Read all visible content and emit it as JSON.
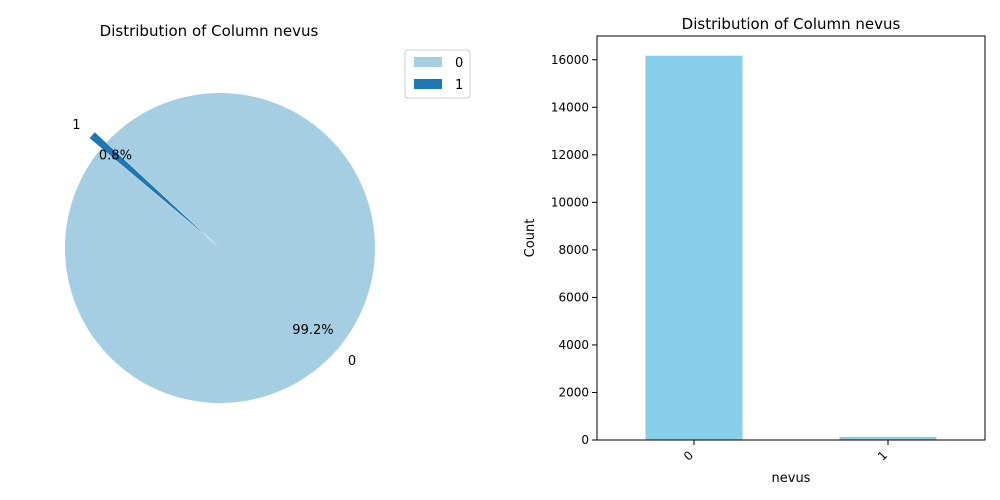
{
  "chart_data": [
    {
      "type": "pie",
      "title": "Distribution of Column nevus",
      "categories": [
        "0",
        "1"
      ],
      "values": [
        99.2,
        0.8
      ],
      "value_labels": [
        "99.2%",
        "0.8%"
      ],
      "colors": [
        "#a6cee3",
        "#1f78b4"
      ],
      "legend": {
        "placement": "top-right",
        "entries": [
          "0",
          "1"
        ]
      },
      "exploded": [
        "1"
      ]
    },
    {
      "type": "bar",
      "title": "Distribution of Column nevus",
      "categories": [
        "0",
        "1"
      ],
      "values": [
        16170,
        130
      ],
      "xlabel": "nevus",
      "ylabel": "Count",
      "ylim": [
        0,
        17000
      ],
      "yticks": [
        "0",
        "2000",
        "4000",
        "6000",
        "8000",
        "10000",
        "12000",
        "14000",
        "16000"
      ],
      "color": "#87ceeb",
      "grid": false
    }
  ]
}
